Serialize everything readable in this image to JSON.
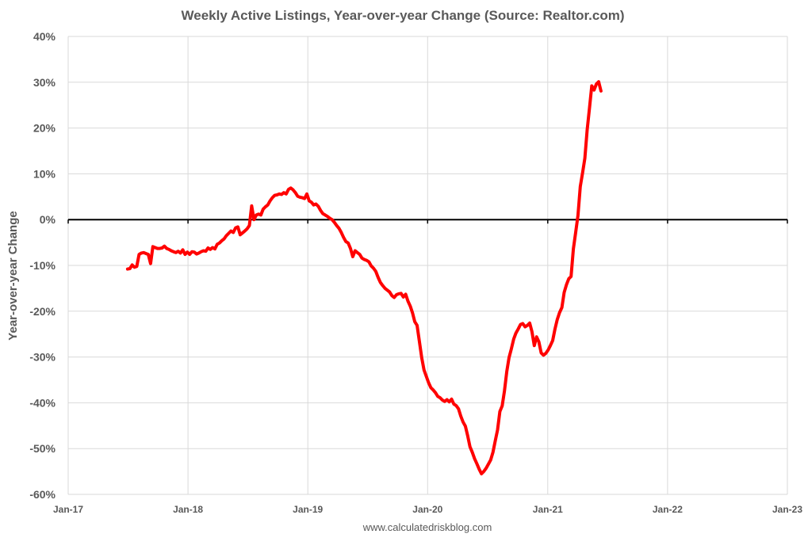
{
  "chart_data": {
    "type": "line",
    "title": "Weekly Active Listings, Year-over-year Change (Source: Realtor.com)",
    "ylabel": "Year-over-year Change",
    "xlabel": "",
    "source": "www.calculatedriskblog.com",
    "ylim": [
      -60,
      40
    ],
    "y_ticks": [
      {
        "value": 40,
        "label": "40%"
      },
      {
        "value": 30,
        "label": "30%"
      },
      {
        "value": 20,
        "label": "20%"
      },
      {
        "value": 10,
        "label": "10%"
      },
      {
        "value": 0,
        "label": "0%"
      },
      {
        "value": -10,
        "label": "-10%"
      },
      {
        "value": -20,
        "label": "-20%"
      },
      {
        "value": -30,
        "label": "-30%"
      },
      {
        "value": -40,
        "label": "-40%"
      },
      {
        "value": -50,
        "label": "-50%"
      },
      {
        "value": -60,
        "label": "-60%"
      }
    ],
    "xlim": [
      "2017-01",
      "2023-01"
    ],
    "x_ticks": [
      {
        "value": "2017-01",
        "label": "Jan-17"
      },
      {
        "value": "2018-01",
        "label": "Jan-18"
      },
      {
        "value": "2019-01",
        "label": "Jan-19"
      },
      {
        "value": "2020-01",
        "label": "Jan-20"
      },
      {
        "value": "2021-01",
        "label": "Jan-21"
      },
      {
        "value": "2022-01",
        "label": "Jan-22"
      },
      {
        "value": "2023-01",
        "label": "Jan-23"
      }
    ],
    "grid": true,
    "zero_line": true,
    "series": [
      {
        "color": "#ff0000",
        "points": [
          [
            "2017-07-01",
            -10.8
          ],
          [
            "2017-07-08",
            -10.7
          ],
          [
            "2017-07-15",
            -9.9
          ],
          [
            "2017-07-22",
            -10.4
          ],
          [
            "2017-07-29",
            -10.2
          ],
          [
            "2017-08-05",
            -7.6
          ],
          [
            "2017-08-12",
            -7.3
          ],
          [
            "2017-08-19",
            -7.2
          ],
          [
            "2017-08-26",
            -7.4
          ],
          [
            "2017-09-02",
            -7.6
          ],
          [
            "2017-09-09",
            -9.6
          ],
          [
            "2017-09-16",
            -5.9
          ],
          [
            "2017-09-23",
            -6.1
          ],
          [
            "2017-09-30",
            -6.3
          ],
          [
            "2017-10-07",
            -6.3
          ],
          [
            "2017-10-14",
            -6.2
          ],
          [
            "2017-10-21",
            -5.8
          ],
          [
            "2017-10-28",
            -6.3
          ],
          [
            "2017-11-04",
            -6.5
          ],
          [
            "2017-11-11",
            -6.8
          ],
          [
            "2017-11-18",
            -7.0
          ],
          [
            "2017-11-25",
            -7.2
          ],
          [
            "2017-12-02",
            -6.9
          ],
          [
            "2017-12-09",
            -7.3
          ],
          [
            "2017-12-16",
            -6.6
          ],
          [
            "2017-12-23",
            -7.6
          ],
          [
            "2017-12-30",
            -7.1
          ],
          [
            "2018-01-06",
            -7.6
          ],
          [
            "2018-01-13",
            -7.0
          ],
          [
            "2018-01-20",
            -7.1
          ],
          [
            "2018-01-27",
            -7.5
          ],
          [
            "2018-02-03",
            -7.3
          ],
          [
            "2018-02-10",
            -7.0
          ],
          [
            "2018-02-17",
            -6.8
          ],
          [
            "2018-02-24",
            -6.9
          ],
          [
            "2018-03-03",
            -6.2
          ],
          [
            "2018-03-10",
            -6.5
          ],
          [
            "2018-03-17",
            -6.1
          ],
          [
            "2018-03-24",
            -6.4
          ],
          [
            "2018-03-31",
            -5.4
          ],
          [
            "2018-04-07",
            -5.1
          ],
          [
            "2018-04-14",
            -4.6
          ],
          [
            "2018-04-21",
            -4.2
          ],
          [
            "2018-04-28",
            -3.5
          ],
          [
            "2018-05-05",
            -3.0
          ],
          [
            "2018-05-12",
            -2.5
          ],
          [
            "2018-05-19",
            -2.8
          ],
          [
            "2018-05-26",
            -1.8
          ],
          [
            "2018-06-02",
            -1.6
          ],
          [
            "2018-06-09",
            -3.3
          ],
          [
            "2018-06-16",
            -2.9
          ],
          [
            "2018-06-23",
            -2.5
          ],
          [
            "2018-06-30",
            -2.0
          ],
          [
            "2018-07-07",
            -1.3
          ],
          [
            "2018-07-14",
            3.0
          ],
          [
            "2018-07-21",
            0.0
          ],
          [
            "2018-07-28",
            1.0
          ],
          [
            "2018-08-04",
            1.2
          ],
          [
            "2018-08-11",
            1.0
          ],
          [
            "2018-08-18",
            2.3
          ],
          [
            "2018-08-25",
            2.8
          ],
          [
            "2018-09-01",
            3.2
          ],
          [
            "2018-09-08",
            4.1
          ],
          [
            "2018-09-15",
            4.8
          ],
          [
            "2018-09-22",
            5.3
          ],
          [
            "2018-09-29",
            5.4
          ],
          [
            "2018-10-06",
            5.6
          ],
          [
            "2018-10-13",
            5.5
          ],
          [
            "2018-10-20",
            5.9
          ],
          [
            "2018-10-27",
            5.6
          ],
          [
            "2018-11-03",
            6.6
          ],
          [
            "2018-11-10",
            6.9
          ],
          [
            "2018-11-17",
            6.5
          ],
          [
            "2018-11-24",
            5.9
          ],
          [
            "2018-12-01",
            5.1
          ],
          [
            "2018-12-08",
            4.9
          ],
          [
            "2018-12-15",
            4.8
          ],
          [
            "2018-12-22",
            4.6
          ],
          [
            "2018-12-29",
            5.6
          ],
          [
            "2019-01-05",
            4.1
          ],
          [
            "2019-01-12",
            3.8
          ],
          [
            "2019-01-19",
            3.2
          ],
          [
            "2019-01-26",
            3.4
          ],
          [
            "2019-02-02",
            2.9
          ],
          [
            "2019-02-09",
            2.0
          ],
          [
            "2019-02-16",
            1.3
          ],
          [
            "2019-02-23",
            1.0
          ],
          [
            "2019-03-02",
            0.7
          ],
          [
            "2019-03-09",
            0.3
          ],
          [
            "2019-03-16",
            0.0
          ],
          [
            "2019-03-23",
            -0.6
          ],
          [
            "2019-03-30",
            -1.3
          ],
          [
            "2019-04-06",
            -1.9
          ],
          [
            "2019-04-13",
            -2.8
          ],
          [
            "2019-04-20",
            -3.9
          ],
          [
            "2019-04-27",
            -4.8
          ],
          [
            "2019-05-04",
            -5.1
          ],
          [
            "2019-05-11",
            -6.3
          ],
          [
            "2019-05-18",
            -8.1
          ],
          [
            "2019-05-25",
            -6.8
          ],
          [
            "2019-06-01",
            -7.2
          ],
          [
            "2019-06-08",
            -7.6
          ],
          [
            "2019-06-15",
            -8.4
          ],
          [
            "2019-06-22",
            -8.7
          ],
          [
            "2019-06-29",
            -8.9
          ],
          [
            "2019-07-06",
            -9.2
          ],
          [
            "2019-07-13",
            -10.1
          ],
          [
            "2019-07-20",
            -10.6
          ],
          [
            "2019-07-27",
            -11.3
          ],
          [
            "2019-08-03",
            -12.6
          ],
          [
            "2019-08-10",
            -13.7
          ],
          [
            "2019-08-17",
            -14.4
          ],
          [
            "2019-08-24",
            -15.0
          ],
          [
            "2019-08-31",
            -15.4
          ],
          [
            "2019-09-07",
            -15.8
          ],
          [
            "2019-09-14",
            -16.6
          ],
          [
            "2019-09-21",
            -17.0
          ],
          [
            "2019-09-28",
            -16.4
          ],
          [
            "2019-10-05",
            -16.2
          ],
          [
            "2019-10-12",
            -16.1
          ],
          [
            "2019-10-19",
            -16.9
          ],
          [
            "2019-10-26",
            -16.3
          ],
          [
            "2019-11-02",
            -17.8
          ],
          [
            "2019-11-09",
            -18.9
          ],
          [
            "2019-11-16",
            -20.4
          ],
          [
            "2019-11-23",
            -22.3
          ],
          [
            "2019-11-30",
            -23.1
          ],
          [
            "2019-12-07",
            -26.6
          ],
          [
            "2019-12-14",
            -30.1
          ],
          [
            "2019-12-21",
            -32.8
          ],
          [
            "2019-12-28",
            -34.2
          ],
          [
            "2020-01-04",
            -35.6
          ],
          [
            "2020-01-11",
            -36.7
          ],
          [
            "2020-01-18",
            -37.2
          ],
          [
            "2020-01-25",
            -37.8
          ],
          [
            "2020-02-01",
            -38.6
          ],
          [
            "2020-02-08",
            -38.9
          ],
          [
            "2020-02-15",
            -39.4
          ],
          [
            "2020-02-22",
            -39.7
          ],
          [
            "2020-02-29",
            -39.3
          ],
          [
            "2020-03-07",
            -39.8
          ],
          [
            "2020-03-14",
            -39.2
          ],
          [
            "2020-03-21",
            -40.3
          ],
          [
            "2020-03-28",
            -40.6
          ],
          [
            "2020-04-04",
            -41.3
          ],
          [
            "2020-04-11",
            -42.9
          ],
          [
            "2020-04-18",
            -44.2
          ],
          [
            "2020-04-25",
            -45.1
          ],
          [
            "2020-05-02",
            -47.2
          ],
          [
            "2020-05-09",
            -49.6
          ],
          [
            "2020-05-16",
            -50.8
          ],
          [
            "2020-05-23",
            -52.2
          ],
          [
            "2020-05-30",
            -53.3
          ],
          [
            "2020-06-06",
            -54.5
          ],
          [
            "2020-06-13",
            -55.5
          ],
          [
            "2020-06-20",
            -55.0
          ],
          [
            "2020-06-27",
            -54.3
          ],
          [
            "2020-07-04",
            -53.4
          ],
          [
            "2020-07-11",
            -52.5
          ],
          [
            "2020-07-18",
            -50.8
          ],
          [
            "2020-07-25",
            -48.3
          ],
          [
            "2020-08-01",
            -45.9
          ],
          [
            "2020-08-08",
            -41.9
          ],
          [
            "2020-08-15",
            -40.7
          ],
          [
            "2020-08-22",
            -37.4
          ],
          [
            "2020-08-29",
            -33.2
          ],
          [
            "2020-09-05",
            -30.1
          ],
          [
            "2020-09-12",
            -28.2
          ],
          [
            "2020-09-19",
            -26.1
          ],
          [
            "2020-09-26",
            -24.8
          ],
          [
            "2020-10-03",
            -23.9
          ],
          [
            "2020-10-10",
            -22.9
          ],
          [
            "2020-10-17",
            -22.7
          ],
          [
            "2020-10-24",
            -23.4
          ],
          [
            "2020-10-31",
            -23.1
          ],
          [
            "2020-11-07",
            -22.6
          ],
          [
            "2020-11-14",
            -24.5
          ],
          [
            "2020-11-21",
            -27.5
          ],
          [
            "2020-11-28",
            -25.6
          ],
          [
            "2020-12-05",
            -26.7
          ],
          [
            "2020-12-12",
            -29.1
          ],
          [
            "2020-12-19",
            -29.6
          ],
          [
            "2020-12-26",
            -29.2
          ],
          [
            "2021-01-02",
            -28.5
          ],
          [
            "2021-01-09",
            -27.5
          ],
          [
            "2021-01-16",
            -26.4
          ],
          [
            "2021-01-23",
            -23.9
          ],
          [
            "2021-01-30",
            -21.8
          ],
          [
            "2021-02-06",
            -20.3
          ],
          [
            "2021-02-13",
            -19.2
          ],
          [
            "2021-02-20",
            -15.9
          ],
          [
            "2021-02-27",
            -14.2
          ],
          [
            "2021-03-06",
            -12.9
          ],
          [
            "2021-03-13",
            -12.4
          ],
          [
            "2021-03-20",
            -6.4
          ],
          [
            "2021-03-27",
            -2.8
          ],
          [
            "2021-04-03",
            0.9
          ],
          [
            "2021-04-10",
            7.2
          ],
          [
            "2021-04-17",
            10.2
          ],
          [
            "2021-04-24",
            13.4
          ],
          [
            "2021-05-01",
            19.6
          ],
          [
            "2021-05-08",
            24.3
          ],
          [
            "2021-05-15",
            29.2
          ],
          [
            "2021-05-22",
            28.3
          ],
          [
            "2021-05-29",
            29.6
          ],
          [
            "2021-06-05",
            30.1
          ],
          [
            "2021-06-12",
            28.1
          ]
        ]
      }
    ]
  }
}
